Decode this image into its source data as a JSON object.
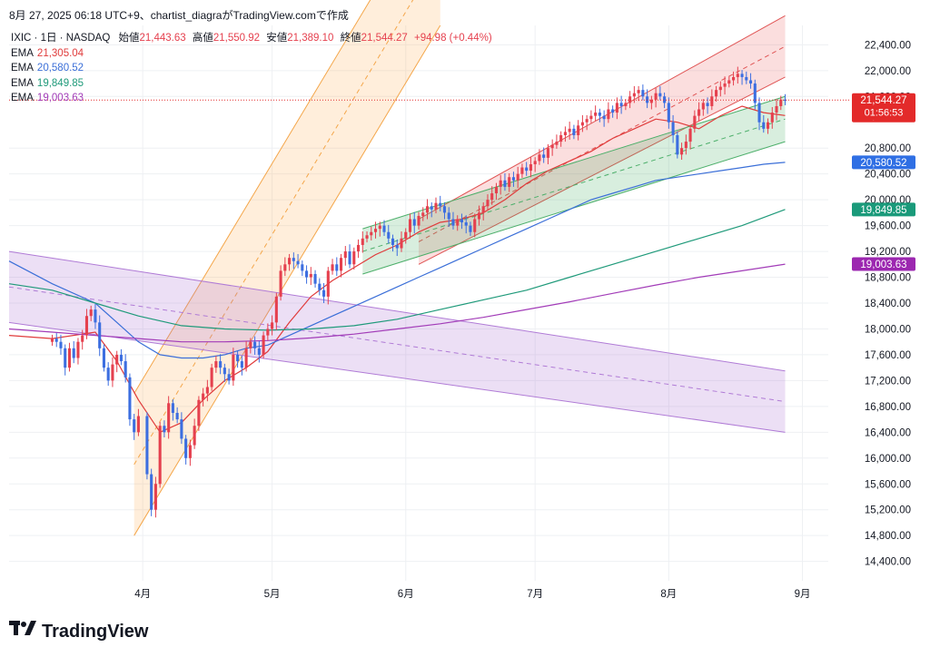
{
  "header": {
    "text": "8月 27, 2025 06:18 UTC+9、chartist_diagraがTradingView.comで作成"
  },
  "legend": {
    "symbol": "IXIC · 1日 · NASDAQ",
    "open_label": "始値",
    "open": "21,443.63",
    "high_label": "高値",
    "high": "21,550.92",
    "low_label": "安値",
    "low": "21,389.10",
    "close_label": "終値",
    "close": "21,544.27",
    "change": "+94.98 (+0.44%)",
    "emas": [
      {
        "label": "EMA",
        "value": "21,305.04",
        "color": "#e03b3b"
      },
      {
        "label": "EMA",
        "value": "20,580.52",
        "color": "#3b6fd8"
      },
      {
        "label": "EMA",
        "value": "19,849.85",
        "color": "#1f9a7a"
      },
      {
        "label": "EMA",
        "value": "19,003.63",
        "color": "#a23cb8"
      }
    ]
  },
  "price_tags": {
    "last": "21,544.27",
    "countdown": "01:56:53",
    "ema1": "21,305.04",
    "ema2": "20,580.52",
    "ema3": "19,849.85",
    "ema4": "19,003.63"
  },
  "logo": {
    "text": "TradingView"
  },
  "colors": {
    "up": "#e5404e",
    "down": "#3c6ee0",
    "red_tag": "#e32a2a",
    "blue_tag": "#2f6fe4",
    "green_tag": "#1a9a7a",
    "purple_tag": "#9c27b0"
  },
  "chart_data": {
    "type": "candlestick",
    "y_axis_ticks": [
      22400,
      22000,
      21600,
      20800,
      20400,
      20000,
      19600,
      19200,
      18800,
      18400,
      18000,
      17600,
      17200,
      16800,
      16400,
      16000,
      15600,
      15200,
      14800,
      14400
    ],
    "y_axis_labels": [
      "22,400.00",
      "22,000.00",
      "21,600.00",
      "20,800.00",
      "20,400.00",
      "20,000.00",
      "19,600.00",
      "19,200.00",
      "18,800.00",
      "18,400.00",
      "18,000.00",
      "17,600.00",
      "17,200.00",
      "16,800.00",
      "16,400.00",
      "16,000.00",
      "15,600.00",
      "15,200.00",
      "14,800.00",
      "14,400.00"
    ],
    "x_axis_labels": [
      "4月",
      "5月",
      "6月",
      "7月",
      "8月",
      "9月"
    ],
    "x_axis_days": [
      31,
      61,
      92,
      122,
      153,
      184
    ],
    "ylim": [
      14100,
      22700
    ],
    "xlim": [
      0,
      190
    ],
    "last_price": 21544.27,
    "candles_close": [
      [
        10,
        17850
      ],
      [
        11,
        17800
      ],
      [
        12,
        17700
      ],
      [
        13,
        17400
      ],
      [
        14,
        17700
      ],
      [
        15,
        17550
      ],
      [
        16,
        17800
      ],
      [
        17,
        17900
      ],
      [
        18,
        18200
      ],
      [
        19,
        18300
      ],
      [
        20,
        18100
      ],
      [
        21,
        17700
      ],
      [
        22,
        17400
      ],
      [
        23,
        17200
      ],
      [
        24,
        17450
      ],
      [
        25,
        17600
      ],
      [
        26,
        17500
      ],
      [
        27,
        17250
      ],
      [
        28,
        16600
      ],
      [
        29,
        16400
      ],
      [
        30,
        16650
      ],
      [
        32,
        15750
      ],
      [
        33,
        15200
      ],
      [
        34,
        15600
      ],
      [
        35,
        16500
      ],
      [
        36,
        16400
      ],
      [
        37,
        16850
      ],
      [
        38,
        16700
      ],
      [
        39,
        16600
      ],
      [
        40,
        16300
      ],
      [
        41,
        16000
      ],
      [
        42,
        16200
      ],
      [
        43,
        16500
      ],
      [
        44,
        16900
      ],
      [
        45,
        17000
      ],
      [
        46,
        17100
      ],
      [
        47,
        17400
      ],
      [
        48,
        17500
      ],
      [
        49,
        17400
      ],
      [
        50,
        17300
      ],
      [
        51,
        17200
      ],
      [
        52,
        17600
      ],
      [
        53,
        17500
      ],
      [
        54,
        17400
      ],
      [
        55,
        17700
      ],
      [
        56,
        17800
      ],
      [
        57,
        17700
      ],
      [
        58,
        17600
      ],
      [
        59,
        17900
      ],
      [
        60,
        18000
      ],
      [
        61,
        18100
      ],
      [
        62,
        18500
      ],
      [
        63,
        18900
      ],
      [
        64,
        19000
      ],
      [
        65,
        19100
      ],
      [
        66,
        19050
      ],
      [
        67,
        19000
      ],
      [
        68,
        18900
      ],
      [
        69,
        18800
      ],
      [
        70,
        18850
      ],
      [
        71,
        18700
      ],
      [
        72,
        18600
      ],
      [
        73,
        18500
      ],
      [
        74,
        18900
      ],
      [
        75,
        19000
      ],
      [
        76,
        18900
      ],
      [
        77,
        19100
      ],
      [
        78,
        19200
      ],
      [
        79,
        19000
      ],
      [
        80,
        19200
      ],
      [
        81,
        19300
      ],
      [
        82,
        19400
      ],
      [
        83,
        19450
      ],
      [
        84,
        19500
      ],
      [
        85,
        19550
      ],
      [
        86,
        19600
      ],
      [
        87,
        19500
      ],
      [
        88,
        19400
      ],
      [
        89,
        19300
      ],
      [
        90,
        19250
      ],
      [
        91,
        19400
      ],
      [
        92,
        19500
      ],
      [
        93,
        19700
      ],
      [
        94,
        19600
      ],
      [
        95,
        19750
      ],
      [
        96,
        19800
      ],
      [
        97,
        19900
      ],
      [
        98,
        19850
      ],
      [
        99,
        19950
      ],
      [
        100,
        19900
      ],
      [
        101,
        19800
      ],
      [
        102,
        19700
      ],
      [
        103,
        19600
      ],
      [
        104,
        19700
      ],
      [
        105,
        19650
      ],
      [
        106,
        19600
      ],
      [
        107,
        19500
      ],
      [
        108,
        19700
      ],
      [
        109,
        19800
      ],
      [
        110,
        19900
      ],
      [
        111,
        20000
      ],
      [
        112,
        20100
      ],
      [
        113,
        20200
      ],
      [
        114,
        20300
      ],
      [
        115,
        20200
      ],
      [
        116,
        20350
      ],
      [
        117,
        20300
      ],
      [
        118,
        20400
      ],
      [
        119,
        20500
      ],
      [
        120,
        20450
      ],
      [
        121,
        20550
      ],
      [
        122,
        20600
      ],
      [
        123,
        20700
      ],
      [
        124,
        20650
      ],
      [
        125,
        20800
      ],
      [
        126,
        20850
      ],
      [
        127,
        20900
      ],
      [
        128,
        21000
      ],
      [
        129,
        21050
      ],
      [
        130,
        21100
      ],
      [
        131,
        21000
      ],
      [
        132,
        21150
      ],
      [
        133,
        21200
      ],
      [
        134,
        21250
      ],
      [
        135,
        21300
      ],
      [
        136,
        21350
      ],
      [
        137,
        21300
      ],
      [
        138,
        21250
      ],
      [
        139,
        21400
      ],
      [
        140,
        21350
      ],
      [
        141,
        21500
      ],
      [
        142,
        21450
      ],
      [
        143,
        21500
      ],
      [
        144,
        21600
      ],
      [
        145,
        21650
      ],
      [
        146,
        21700
      ],
      [
        147,
        21600
      ],
      [
        148,
        21500
      ],
      [
        149,
        21550
      ],
      [
        150,
        21650
      ],
      [
        151,
        21600
      ],
      [
        152,
        21500
      ],
      [
        153,
        21200
      ],
      [
        154,
        21000
      ],
      [
        155,
        20700
      ],
      [
        156,
        20800
      ],
      [
        157,
        20900
      ],
      [
        158,
        21100
      ],
      [
        159,
        21300
      ],
      [
        160,
        21400
      ],
      [
        161,
        21500
      ],
      [
        162,
        21450
      ],
      [
        163,
        21600
      ],
      [
        164,
        21700
      ],
      [
        165,
        21750
      ],
      [
        166,
        21800
      ],
      [
        167,
        21850
      ],
      [
        168,
        21900
      ],
      [
        169,
        21950
      ],
      [
        170,
        21900
      ],
      [
        171,
        21850
      ],
      [
        172,
        21800
      ],
      [
        173,
        21500
      ],
      [
        174,
        21200
      ],
      [
        175,
        21100
      ],
      [
        176,
        21200
      ],
      [
        177,
        21350
      ],
      [
        178,
        21450
      ],
      [
        179,
        21550
      ],
      [
        180,
        21544
      ]
    ],
    "ema_series": [
      {
        "color": "#e03b3b",
        "points": [
          [
            0,
            17900
          ],
          [
            10,
            17850
          ],
          [
            20,
            17950
          ],
          [
            25,
            17500
          ],
          [
            30,
            16900
          ],
          [
            35,
            16400
          ],
          [
            40,
            16550
          ],
          [
            45,
            16900
          ],
          [
            50,
            17200
          ],
          [
            55,
            17400
          ],
          [
            60,
            17650
          ],
          [
            65,
            18100
          ],
          [
            70,
            18500
          ],
          [
            75,
            18750
          ],
          [
            80,
            18950
          ],
          [
            85,
            19150
          ],
          [
            90,
            19300
          ],
          [
            95,
            19500
          ],
          [
            100,
            19650
          ],
          [
            105,
            19700
          ],
          [
            110,
            19800
          ],
          [
            115,
            20000
          ],
          [
            120,
            20250
          ],
          [
            125,
            20450
          ],
          [
            130,
            20600
          ],
          [
            135,
            20750
          ],
          [
            140,
            20950
          ],
          [
            145,
            21100
          ],
          [
            150,
            21250
          ],
          [
            155,
            21200
          ],
          [
            160,
            21100
          ],
          [
            165,
            21300
          ],
          [
            170,
            21450
          ],
          [
            175,
            21350
          ],
          [
            180,
            21305
          ]
        ]
      },
      {
        "color": "#3b6fd8",
        "points": [
          [
            0,
            19050
          ],
          [
            10,
            18700
          ],
          [
            20,
            18400
          ],
          [
            25,
            18100
          ],
          [
            30,
            17800
          ],
          [
            35,
            17600
          ],
          [
            40,
            17550
          ],
          [
            45,
            17550
          ],
          [
            50,
            17600
          ],
          [
            55,
            17700
          ],
          [
            60,
            17750
          ],
          [
            65,
            17900
          ],
          [
            70,
            18050
          ],
          [
            75,
            18200
          ],
          [
            80,
            18350
          ],
          [
            85,
            18500
          ],
          [
            90,
            18650
          ],
          [
            95,
            18800
          ],
          [
            100,
            18950
          ],
          [
            105,
            19100
          ],
          [
            110,
            19250
          ],
          [
            115,
            19400
          ],
          [
            120,
            19550
          ],
          [
            125,
            19700
          ],
          [
            130,
            19850
          ],
          [
            135,
            20000
          ],
          [
            140,
            20100
          ],
          [
            145,
            20200
          ],
          [
            150,
            20300
          ],
          [
            155,
            20350
          ],
          [
            160,
            20400
          ],
          [
            165,
            20450
          ],
          [
            170,
            20500
          ],
          [
            175,
            20550
          ],
          [
            180,
            20580
          ]
        ]
      },
      {
        "color": "#1f9a7a",
        "points": [
          [
            0,
            18700
          ],
          [
            10,
            18600
          ],
          [
            20,
            18400
          ],
          [
            30,
            18200
          ],
          [
            40,
            18050
          ],
          [
            50,
            18000
          ],
          [
            60,
            17980
          ],
          [
            70,
            18000
          ],
          [
            80,
            18050
          ],
          [
            90,
            18150
          ],
          [
            100,
            18300
          ],
          [
            110,
            18450
          ],
          [
            120,
            18600
          ],
          [
            130,
            18800
          ],
          [
            140,
            19000
          ],
          [
            150,
            19200
          ],
          [
            160,
            19400
          ],
          [
            170,
            19600
          ],
          [
            180,
            19850
          ]
        ]
      },
      {
        "color": "#a23cb8",
        "points": [
          [
            0,
            18000
          ],
          [
            10,
            17950
          ],
          [
            20,
            17900
          ],
          [
            30,
            17850
          ],
          [
            40,
            17800
          ],
          [
            50,
            17800
          ],
          [
            60,
            17820
          ],
          [
            70,
            17860
          ],
          [
            80,
            17920
          ],
          [
            90,
            18000
          ],
          [
            100,
            18080
          ],
          [
            110,
            18180
          ],
          [
            120,
            18300
          ],
          [
            130,
            18420
          ],
          [
            140,
            18550
          ],
          [
            150,
            18680
          ],
          [
            160,
            18800
          ],
          [
            170,
            18900
          ],
          [
            180,
            19003
          ]
        ]
      }
    ],
    "channels": [
      {
        "name": "",
        "fill": "rgba(255,178,89,0.22)",
        "line": "#f4a64a",
        "lower": [
          [
            29,
            14800
          ],
          [
            100,
            22700
          ]
        ],
        "upper": [
          [
            29,
            17000
          ],
          [
            100,
            24900
          ]
        ]
      },
      {
        "name": "",
        "fill": "rgba(170,110,210,0.22)",
        "line": "#b07bd6",
        "lower": [
          [
            0,
            18100
          ],
          [
            180,
            16400
          ]
        ],
        "upper": [
          [
            0,
            19200
          ],
          [
            180,
            17350
          ]
        ]
      },
      {
        "name": "",
        "fill": "rgba(235,70,70,0.18)",
        "line": "#e05555",
        "lower": [
          [
            95,
            19000
          ],
          [
            180,
            21900
          ]
        ],
        "upper": [
          [
            95,
            19700
          ],
          [
            180,
            22850
          ]
        ]
      },
      {
        "name": "",
        "fill": "rgba(60,170,90,0.20)",
        "line": "#4caf6a",
        "lower": [
          [
            82,
            18850
          ],
          [
            180,
            20900
          ]
        ],
        "upper": [
          [
            82,
            19550
          ],
          [
            180,
            21600
          ]
        ]
      }
    ]
  }
}
